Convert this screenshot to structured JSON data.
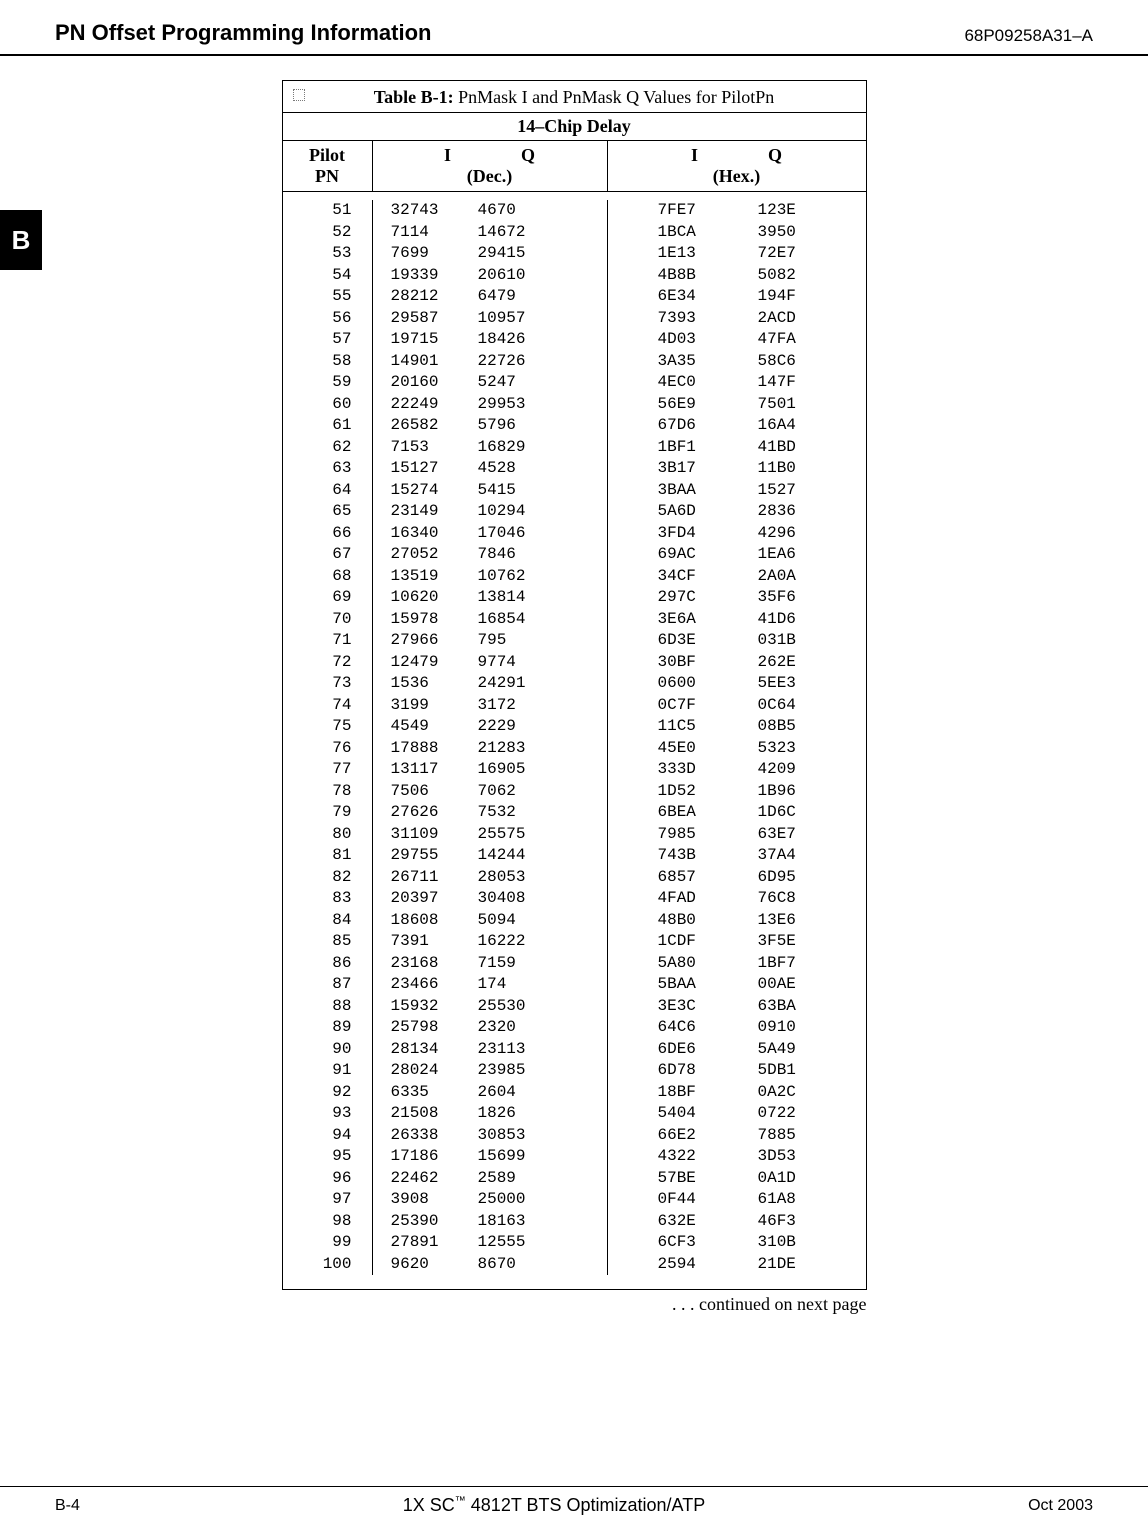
{
  "header": {
    "left": "PN Offset Programming Information",
    "right": "68P09258A31–A"
  },
  "side_tab": "B",
  "table": {
    "title_bold": "Table B-1:",
    "title_rest": " PnMask I and PnMask Q Values for PilotPn",
    "subtitle": "14–Chip  Delay",
    "head": {
      "pilot": "Pilot",
      "pn": "PN",
      "i": "I",
      "q": "Q",
      "dec": "(Dec.)",
      "hex": "(Hex.)"
    },
    "rows": [
      {
        "pn": "51",
        "di": "32743",
        "dq": "4670",
        "hi": "7FE7",
        "hq": "123E"
      },
      {
        "pn": "52",
        "di": "7114",
        "dq": "14672",
        "hi": "1BCA",
        "hq": "3950"
      },
      {
        "pn": "53",
        "di": "7699",
        "dq": "29415",
        "hi": "1E13",
        "hq": "72E7"
      },
      {
        "pn": "54",
        "di": "19339",
        "dq": "20610",
        "hi": "4B8B",
        "hq": "5082"
      },
      {
        "pn": "55",
        "di": "28212",
        "dq": "6479",
        "hi": "6E34",
        "hq": "194F"
      },
      {
        "pn": "56",
        "di": "29587",
        "dq": "10957",
        "hi": "7393",
        "hq": "2ACD"
      },
      {
        "pn": "57",
        "di": "19715",
        "dq": "18426",
        "hi": "4D03",
        "hq": "47FA"
      },
      {
        "pn": "58",
        "di": "14901",
        "dq": "22726",
        "hi": "3A35",
        "hq": "58C6"
      },
      {
        "pn": "59",
        "di": "20160",
        "dq": "5247",
        "hi": "4EC0",
        "hq": "147F"
      },
      {
        "pn": "60",
        "di": "22249",
        "dq": "29953",
        "hi": "56E9",
        "hq": "7501"
      },
      {
        "pn": "61",
        "di": "26582",
        "dq": "5796",
        "hi": "67D6",
        "hq": "16A4"
      },
      {
        "pn": "62",
        "di": "7153",
        "dq": "16829",
        "hi": "1BF1",
        "hq": "41BD"
      },
      {
        "pn": "63",
        "di": "15127",
        "dq": "4528",
        "hi": "3B17",
        "hq": "11B0"
      },
      {
        "pn": "64",
        "di": "15274",
        "dq": "5415",
        "hi": "3BAA",
        "hq": "1527"
      },
      {
        "pn": "65",
        "di": "23149",
        "dq": "10294",
        "hi": "5A6D",
        "hq": "2836"
      },
      {
        "pn": "66",
        "di": "16340",
        "dq": "17046",
        "hi": "3FD4",
        "hq": "4296"
      },
      {
        "pn": "67",
        "di": "27052",
        "dq": "7846",
        "hi": "69AC",
        "hq": "1EA6"
      },
      {
        "pn": "68",
        "di": "13519",
        "dq": "10762",
        "hi": "34CF",
        "hq": "2A0A"
      },
      {
        "pn": "69",
        "di": "10620",
        "dq": "13814",
        "hi": "297C",
        "hq": "35F6"
      },
      {
        "pn": "70",
        "di": "15978",
        "dq": "16854",
        "hi": "3E6A",
        "hq": "41D6"
      },
      {
        "pn": "71",
        "di": "27966",
        "dq": "795",
        "hi": "6D3E",
        "hq": "031B"
      },
      {
        "pn": "72",
        "di": "12479",
        "dq": "9774",
        "hi": "30BF",
        "hq": "262E"
      },
      {
        "pn": "73",
        "di": "1536",
        "dq": "24291",
        "hi": "0600",
        "hq": "5EE3"
      },
      {
        "pn": "74",
        "di": "3199",
        "dq": "3172",
        "hi": "0C7F",
        "hq": "0C64"
      },
      {
        "pn": "75",
        "di": "4549",
        "dq": "2229",
        "hi": "11C5",
        "hq": "08B5"
      },
      {
        "pn": "76",
        "di": "17888",
        "dq": "21283",
        "hi": "45E0",
        "hq": "5323"
      },
      {
        "pn": "77",
        "di": "13117",
        "dq": "16905",
        "hi": "333D",
        "hq": "4209"
      },
      {
        "pn": "78",
        "di": "7506",
        "dq": "7062",
        "hi": "1D52",
        "hq": "1B96"
      },
      {
        "pn": "79",
        "di": "27626",
        "dq": "7532",
        "hi": "6BEA",
        "hq": "1D6C"
      },
      {
        "pn": "80",
        "di": "31109",
        "dq": "25575",
        "hi": "7985",
        "hq": "63E7"
      },
      {
        "pn": "81",
        "di": "29755",
        "dq": "14244",
        "hi": "743B",
        "hq": "37A4"
      },
      {
        "pn": "82",
        "di": "26711",
        "dq": "28053",
        "hi": "6857",
        "hq": "6D95"
      },
      {
        "pn": "83",
        "di": "20397",
        "dq": "30408",
        "hi": "4FAD",
        "hq": "76C8"
      },
      {
        "pn": "84",
        "di": "18608",
        "dq": "5094",
        "hi": "48B0",
        "hq": "13E6"
      },
      {
        "pn": "85",
        "di": "7391",
        "dq": "16222",
        "hi": "1CDF",
        "hq": "3F5E"
      },
      {
        "pn": "86",
        "di": "23168",
        "dq": "7159",
        "hi": "5A80",
        "hq": "1BF7"
      },
      {
        "pn": "87",
        "di": "23466",
        "dq": "174",
        "hi": "5BAA",
        "hq": "00AE"
      },
      {
        "pn": "88",
        "di": "15932",
        "dq": "25530",
        "hi": "3E3C",
        "hq": "63BA"
      },
      {
        "pn": "89",
        "di": "25798",
        "dq": "2320",
        "hi": "64C6",
        "hq": "0910"
      },
      {
        "pn": "90",
        "di": "28134",
        "dq": "23113",
        "hi": "6DE6",
        "hq": "5A49"
      },
      {
        "pn": "91",
        "di": "28024",
        "dq": "23985",
        "hi": "6D78",
        "hq": "5DB1"
      },
      {
        "pn": "92",
        "di": "6335",
        "dq": "2604",
        "hi": "18BF",
        "hq": "0A2C"
      },
      {
        "pn": "93",
        "di": "21508",
        "dq": "1826",
        "hi": "5404",
        "hq": "0722"
      },
      {
        "pn": "94",
        "di": "26338",
        "dq": "30853",
        "hi": "66E2",
        "hq": "7885"
      },
      {
        "pn": "95",
        "di": "17186",
        "dq": "15699",
        "hi": "4322",
        "hq": "3D53"
      },
      {
        "pn": "96",
        "di": "22462",
        "dq": "2589",
        "hi": "57BE",
        "hq": "0A1D"
      },
      {
        "pn": "97",
        "di": "3908",
        "dq": "25000",
        "hi": "0F44",
        "hq": "61A8"
      },
      {
        "pn": "98",
        "di": "25390",
        "dq": "18163",
        "hi": "632E",
        "hq": "46F3"
      },
      {
        "pn": "99",
        "di": "27891",
        "dq": "12555",
        "hi": "6CF3",
        "hq": "310B"
      },
      {
        "pn": "100",
        "di": "9620",
        "dq": "8670",
        "hi": "2594",
        "hq": "21DE"
      }
    ]
  },
  "continued": ". . . continued on next page",
  "footer": {
    "left": "B-4",
    "center_prefix": "1X SC",
    "center_tm": "™",
    "center_suffix": " 4812T BTS Optimization/ATP",
    "right": "Oct 2003"
  }
}
